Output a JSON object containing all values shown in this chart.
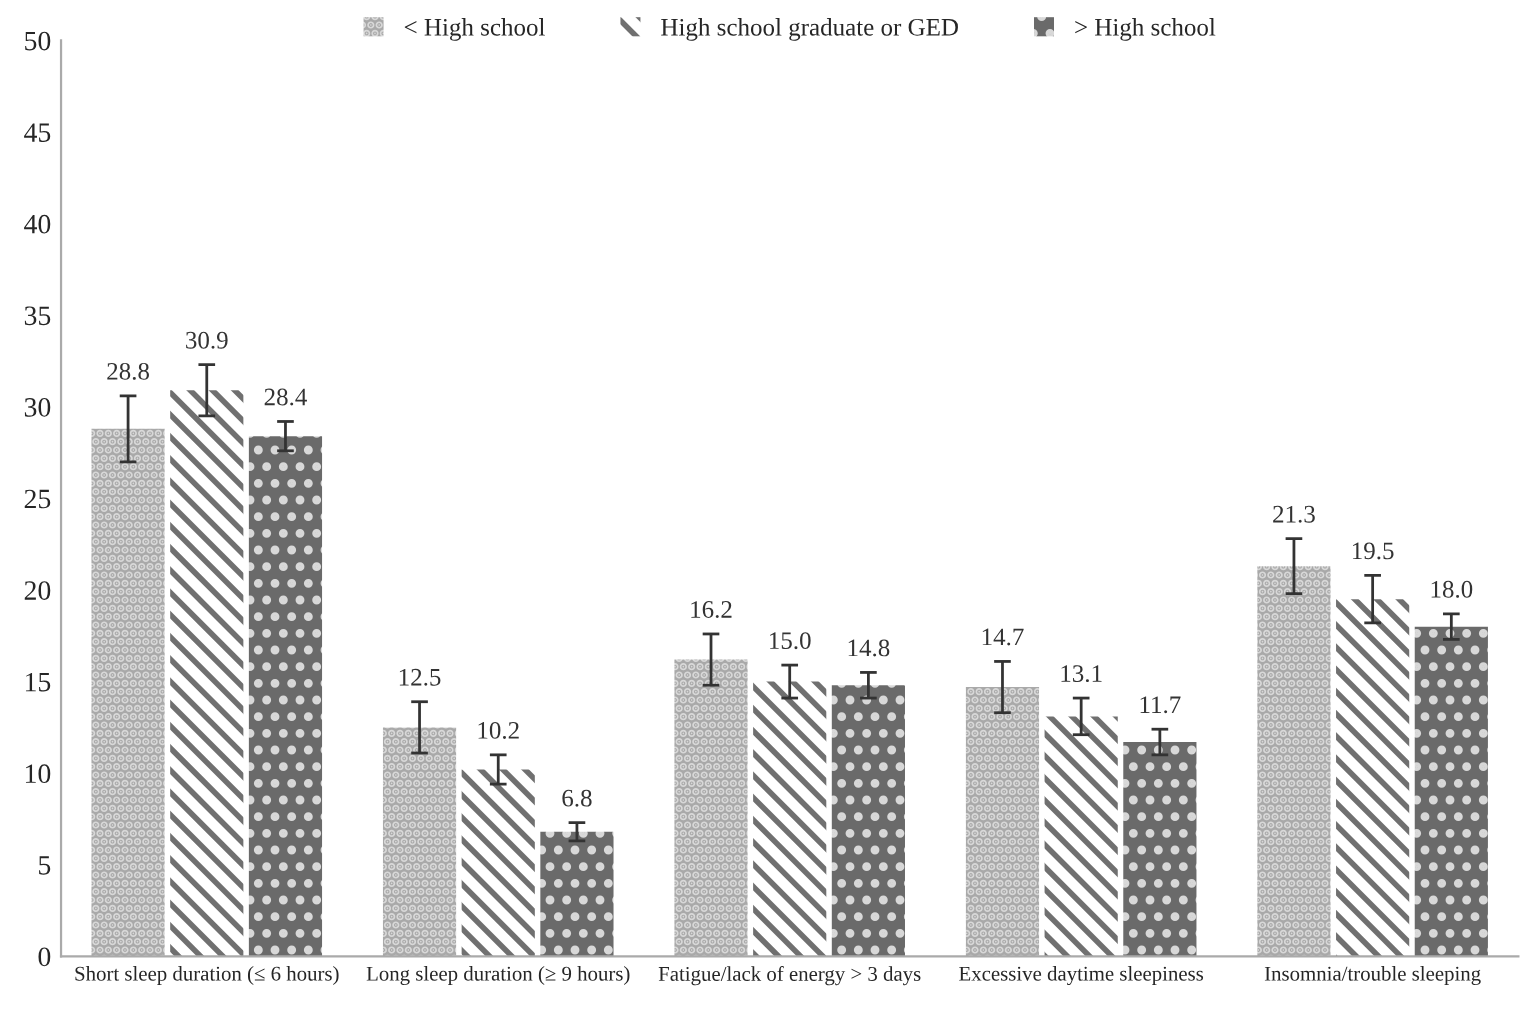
{
  "chart_data": {
    "type": "bar",
    "categories": [
      "Short sleep duration (≤ 6 hours)",
      "Long sleep duration (≥ 9 hours)",
      "Fatigue/lack of energy > 3 days",
      "Excessive daytime sleepiness",
      "Insomnia/trouble sleeping"
    ],
    "series": [
      {
        "name": "< High school",
        "color": "#a9a9a9",
        "values": [
          28.8,
          12.5,
          16.2,
          14.7,
          21.3
        ],
        "value_labels": [
          "28.8",
          "12.5",
          "16.2",
          "14.7",
          "21.3"
        ],
        "errors": [
          1.8,
          1.4,
          1.4,
          1.4,
          1.5
        ]
      },
      {
        "name": "High school graduate or GED",
        "color": "#707070",
        "values": [
          30.9,
          10.2,
          15.0,
          13.1,
          19.5
        ],
        "value_labels": [
          "30.9",
          "10.2",
          "15.0",
          "13.1",
          "19.5"
        ],
        "errors": [
          1.4,
          0.8,
          0.9,
          1.0,
          1.3
        ]
      },
      {
        "name": "> High school",
        "color": "#6a6a6a",
        "values": [
          28.4,
          6.8,
          14.8,
          11.7,
          18.0
        ],
        "value_labels": [
          "28.4",
          "6.8",
          "14.8",
          "11.7",
          "18.0"
        ],
        "errors": [
          0.8,
          0.5,
          0.7,
          0.7,
          0.7
        ]
      }
    ],
    "ylim": [
      0,
      50
    ],
    "yticks": [
      0,
      5,
      10,
      15,
      20,
      25,
      30,
      35,
      40,
      45,
      50
    ],
    "grid": false,
    "legend": "top"
  }
}
